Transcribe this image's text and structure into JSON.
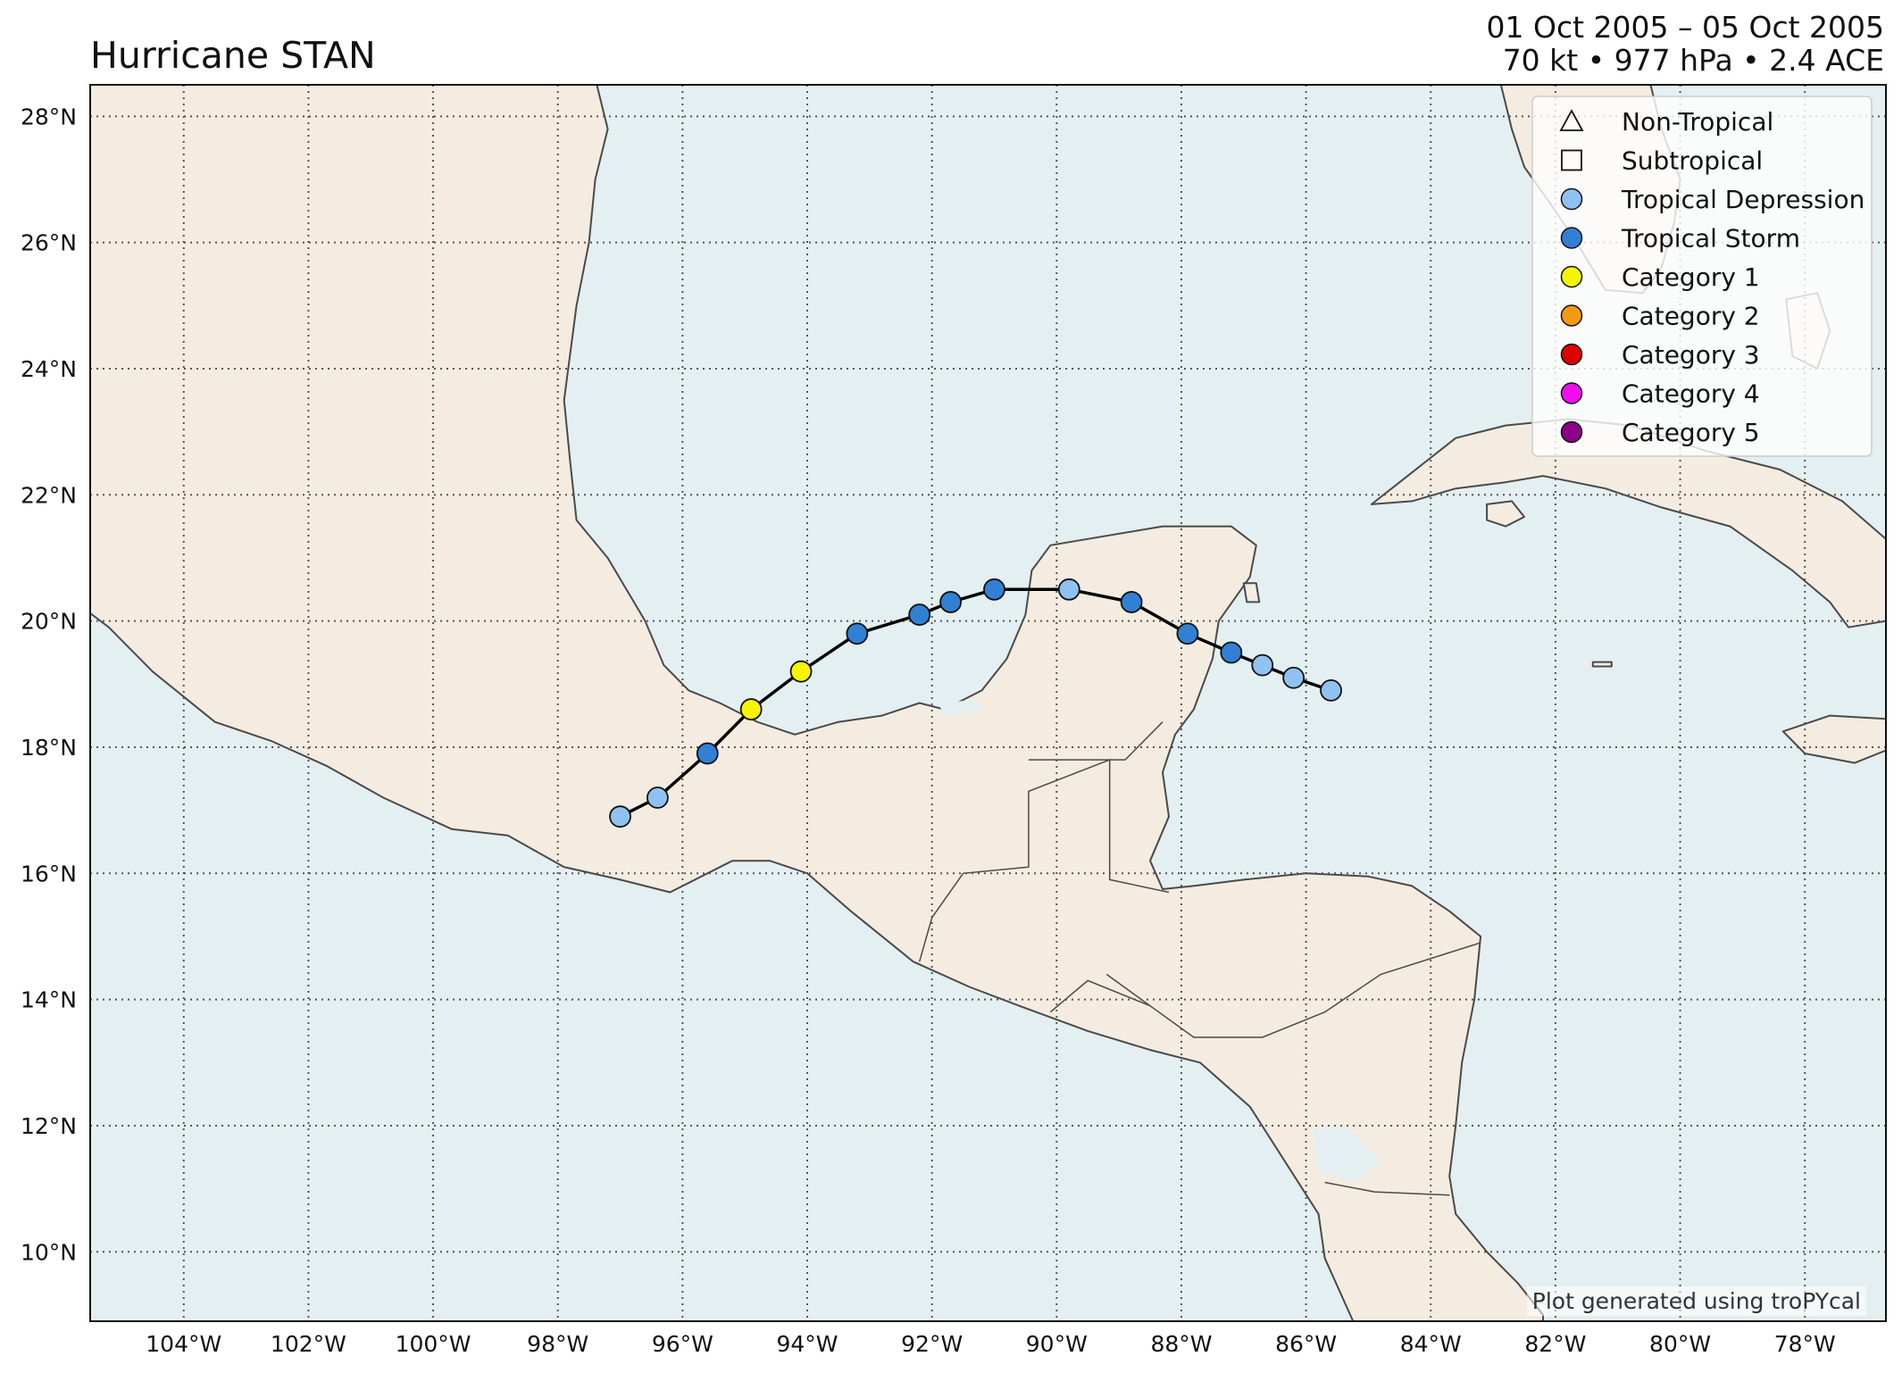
{
  "title": "Hurricane STAN",
  "subtitle": {
    "dates": "01 Oct 2005 – 05 Oct 2005",
    "stats": "70 kt • 977 hPa • 2.4 ACE"
  },
  "credit": "Plot generated using troPYcal",
  "map": {
    "lon_range": [
      -105.5,
      -76.7
    ],
    "lat_range": [
      8.9,
      28.5
    ],
    "lon_ticks": [
      -104,
      -102,
      -100,
      -98,
      -96,
      -94,
      -92,
      -90,
      -88,
      -86,
      -84,
      -82,
      -80,
      -78
    ],
    "lat_ticks": [
      10,
      12,
      14,
      16,
      18,
      20,
      22,
      24,
      26,
      28
    ],
    "lon_tick_labels": [
      "104°W",
      "102°W",
      "100°W",
      "98°W",
      "96°W",
      "94°W",
      "92°W",
      "90°W",
      "88°W",
      "86°W",
      "84°W",
      "82°W",
      "80°W",
      "78°W"
    ],
    "lat_tick_labels": [
      "10°N",
      "12°N",
      "14°N",
      "16°N",
      "18°N",
      "20°N",
      "22°N",
      "24°N",
      "26°N",
      "28°N"
    ],
    "colors": {
      "ocean": "#e4eff1",
      "land": "#f4ece0",
      "coast": "#4a4a4a",
      "grid": "#555555",
      "track": "#000000"
    }
  },
  "legend": {
    "position": "top-right",
    "items": [
      {
        "label": "Non-Tropical",
        "marker": "triangle",
        "color": "none"
      },
      {
        "label": "Subtropical",
        "marker": "square",
        "color": "none"
      },
      {
        "label": "Tropical Depression",
        "marker": "circle",
        "color": "#8fc2f0"
      },
      {
        "label": "Tropical Storm",
        "marker": "circle",
        "color": "#3180d4"
      },
      {
        "label": "Category 1",
        "marker": "circle",
        "color": "#f5f500"
      },
      {
        "label": "Category 2",
        "marker": "circle",
        "color": "#f39a14"
      },
      {
        "label": "Category 3",
        "marker": "circle",
        "color": "#dd0000"
      },
      {
        "label": "Category 4",
        "marker": "circle",
        "color": "#f00ef0"
      },
      {
        "label": "Category 5",
        "marker": "circle",
        "color": "#8b0088"
      }
    ]
  },
  "track": [
    {
      "lon": -85.6,
      "lat": 18.9,
      "cat": "Tropical Depression"
    },
    {
      "lon": -86.2,
      "lat": 19.1,
      "cat": "Tropical Depression"
    },
    {
      "lon": -86.7,
      "lat": 19.3,
      "cat": "Tropical Depression"
    },
    {
      "lon": -87.2,
      "lat": 19.5,
      "cat": "Tropical Storm"
    },
    {
      "lon": -87.9,
      "lat": 19.8,
      "cat": "Tropical Storm"
    },
    {
      "lon": -88.8,
      "lat": 20.3,
      "cat": "Tropical Storm"
    },
    {
      "lon": -89.8,
      "lat": 20.5,
      "cat": "Tropical Depression"
    },
    {
      "lon": -91.0,
      "lat": 20.5,
      "cat": "Tropical Storm"
    },
    {
      "lon": -91.7,
      "lat": 20.3,
      "cat": "Tropical Storm"
    },
    {
      "lon": -92.2,
      "lat": 20.1,
      "cat": "Tropical Storm"
    },
    {
      "lon": -93.2,
      "lat": 19.8,
      "cat": "Tropical Storm"
    },
    {
      "lon": -94.1,
      "lat": 19.2,
      "cat": "Category 1"
    },
    {
      "lon": -94.9,
      "lat": 18.6,
      "cat": "Category 1"
    },
    {
      "lon": -95.6,
      "lat": 17.9,
      "cat": "Tropical Storm"
    },
    {
      "lon": -96.4,
      "lat": 17.2,
      "cat": "Tropical Depression"
    },
    {
      "lon": -97.0,
      "lat": 16.9,
      "cat": "Tropical Depression"
    }
  ]
}
